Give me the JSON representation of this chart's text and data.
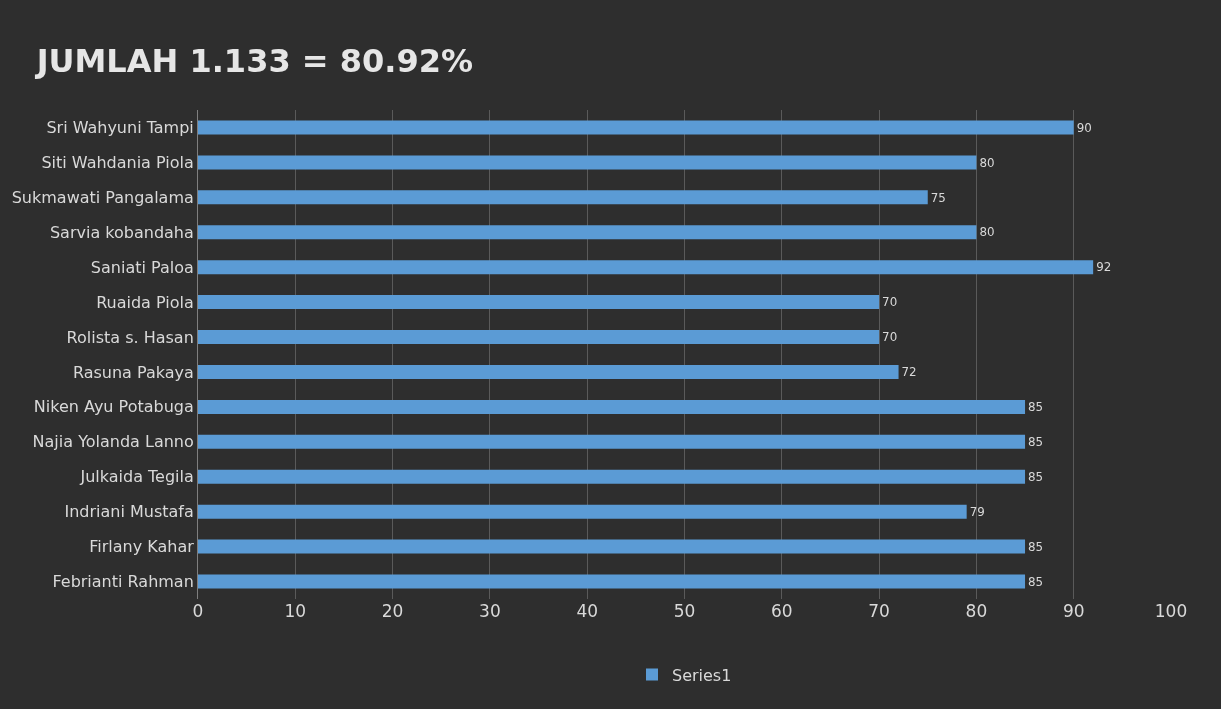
{
  "chart_data": {
    "type": "bar",
    "orientation": "horizontal",
    "title": "JUMLAH 1.133 = 80.92%",
    "categories": [
      "Sri Wahyuni Tampi",
      "Siti Wahdania Piola",
      "Sukmawati Pangalama",
      "Sarvia kobandaha",
      "Saniati Paloa",
      "Ruaida Piola",
      "Rolista s. Hasan",
      "Rasuna Pakaya",
      "Niken Ayu Potabuga",
      "Najia Yolanda Lanno",
      "Julkaida Tegila",
      "Indriani Mustafa",
      "Firlany Kahar",
      "Febrianti Rahman"
    ],
    "series": [
      {
        "name": "Series1",
        "color": "#5b9bd5",
        "values": [
          90,
          80,
          75,
          80,
          92,
          70,
          70,
          72,
          85,
          85,
          85,
          79,
          85,
          85
        ]
      }
    ],
    "xlim": [
      0,
      100
    ],
    "xticks": [
      0,
      10,
      20,
      30,
      40,
      50,
      60,
      70,
      80,
      90,
      100
    ],
    "grid": "x",
    "legend": "bottom",
    "data_labels": true
  }
}
